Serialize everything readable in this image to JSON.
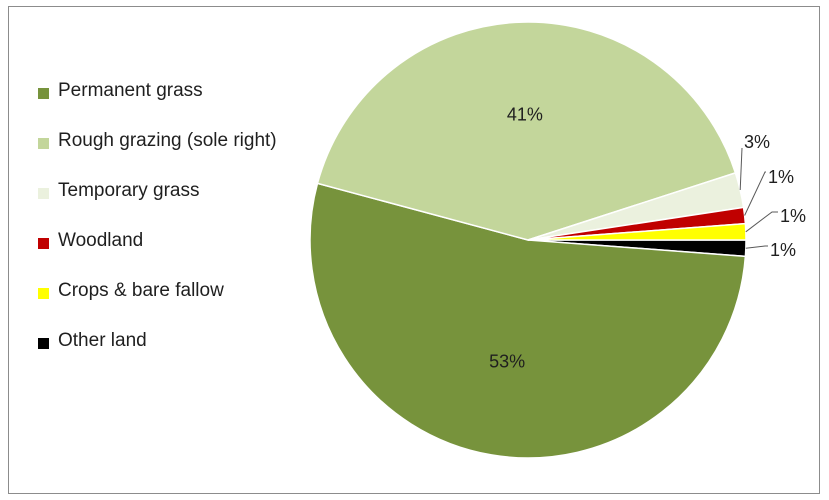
{
  "chart_data": {
    "type": "pie",
    "start_angle": "3 o'clock, clockwise",
    "legend_position": "left",
    "slices": [
      {
        "label": "Other land",
        "value": 1.2,
        "data_label": "1%",
        "color": "#000000"
      },
      {
        "label": "Permanent grass",
        "value": 53.2,
        "data_label": "53%",
        "color": "#77933c"
      },
      {
        "label": "Rough grazing (sole right)",
        "value": 41.0,
        "data_label": "41%",
        "color": "#c3d69b"
      },
      {
        "label": "Temporary grass",
        "value": 2.6,
        "data_label": "3%",
        "color": "#ebf1de"
      },
      {
        "label": "Woodland",
        "value": 1.2,
        "data_label": "1%",
        "color": "#c00000"
      },
      {
        "label": "Crops & bare fallow",
        "value": 1.2,
        "data_label": "1%",
        "color": "#ffff00"
      }
    ],
    "legend_order": [
      "Permanent grass",
      "Rough grazing (sole right)",
      "Temporary grass",
      "Woodland",
      "Crops & bare fallow",
      "Other land"
    ]
  }
}
